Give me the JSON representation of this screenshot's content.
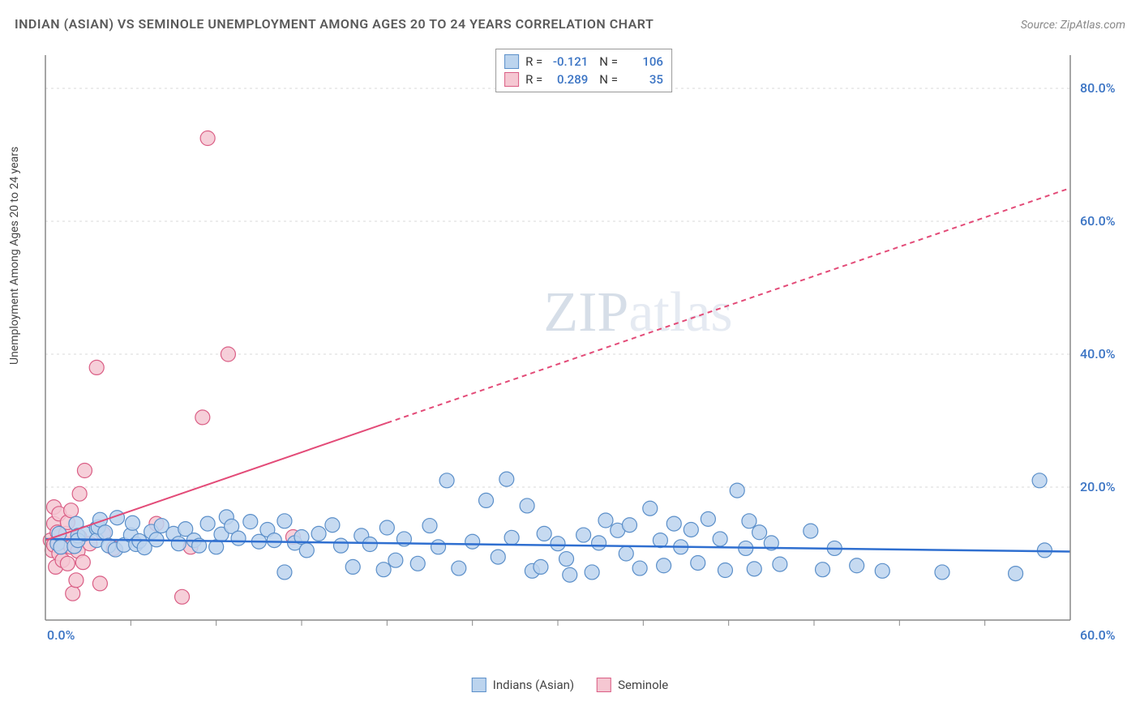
{
  "title": "INDIAN (ASIAN) VS SEMINOLE UNEMPLOYMENT AMONG AGES 20 TO 24 YEARS CORRELATION CHART",
  "source": "Source: ZipAtlas.com",
  "ylabel": "Unemployment Among Ages 20 to 24 years",
  "watermark": {
    "zip": "ZIP",
    "atlas": "atlas"
  },
  "chart": {
    "type": "scatter",
    "xlim": [
      0,
      60
    ],
    "ylim": [
      0,
      85
    ],
    "x_ticks": [
      0,
      60
    ],
    "x_tick_labels": [
      "0.0%",
      "60.0%"
    ],
    "x_minor_ticks": [
      5,
      10,
      15,
      20,
      25,
      30,
      35,
      40,
      45,
      50,
      55
    ],
    "y_ticks": [
      20,
      40,
      60,
      80
    ],
    "y_tick_labels": [
      "20.0%",
      "40.0%",
      "60.0%",
      "80.0%"
    ],
    "grid_color": "#d9d9d9",
    "axis_color": "#888888",
    "background_color": "#ffffff",
    "series": [
      {
        "name": "Indians (Asian)",
        "marker_fill": "#bcd4ee",
        "marker_stroke": "#5b8fc9",
        "marker_radius": 9,
        "line_color": "#2f6fd0",
        "line_width": 2.5,
        "line_dash": "none",
        "R": "-0.121",
        "N": "106",
        "trend": {
          "x1": 0,
          "y1": 12.2,
          "x2": 60,
          "y2": 10.3,
          "dash_start_x": 60
        },
        "points": [
          [
            0.7,
            11.5
          ],
          [
            0.8,
            13.0
          ],
          [
            0.9,
            11.0
          ],
          [
            1.7,
            11.1
          ],
          [
            1.8,
            14.5
          ],
          [
            1.9,
            12.7
          ],
          [
            1.9,
            12.0
          ],
          [
            2.3,
            13.0
          ],
          [
            3.0,
            13.8
          ],
          [
            3.0,
            12.0
          ],
          [
            3.1,
            14.0
          ],
          [
            3.2,
            15.1
          ],
          [
            3.5,
            13.2
          ],
          [
            3.7,
            11.2
          ],
          [
            4.1,
            10.6
          ],
          [
            4.2,
            15.4
          ],
          [
            4.6,
            11.3
          ],
          [
            5.0,
            12.8
          ],
          [
            5.1,
            14.6
          ],
          [
            5.3,
            11.4
          ],
          [
            5.5,
            11.9
          ],
          [
            5.8,
            10.9
          ],
          [
            6.2,
            13.3
          ],
          [
            6.5,
            12.1
          ],
          [
            6.8,
            14.2
          ],
          [
            7.5,
            13.0
          ],
          [
            7.8,
            11.5
          ],
          [
            8.2,
            13.7
          ],
          [
            8.7,
            12.0
          ],
          [
            9.0,
            11.2
          ],
          [
            9.5,
            14.5
          ],
          [
            10.0,
            11.0
          ],
          [
            10.3,
            12.9
          ],
          [
            10.6,
            15.5
          ],
          [
            10.9,
            14.1
          ],
          [
            11.3,
            12.3
          ],
          [
            12.0,
            14.8
          ],
          [
            12.5,
            11.8
          ],
          [
            13.0,
            13.6
          ],
          [
            13.4,
            12.0
          ],
          [
            14.0,
            14.9
          ],
          [
            14.0,
            7.2
          ],
          [
            14.6,
            11.6
          ],
          [
            15.0,
            12.5
          ],
          [
            15.3,
            10.5
          ],
          [
            16.0,
            13.0
          ],
          [
            16.8,
            14.3
          ],
          [
            17.3,
            11.2
          ],
          [
            18.0,
            8.0
          ],
          [
            18.5,
            12.7
          ],
          [
            19.0,
            11.4
          ],
          [
            19.8,
            7.6
          ],
          [
            20.0,
            13.9
          ],
          [
            20.5,
            9.0
          ],
          [
            21.0,
            12.2
          ],
          [
            21.8,
            8.5
          ],
          [
            22.5,
            14.2
          ],
          [
            23.0,
            11.0
          ],
          [
            23.5,
            21.0
          ],
          [
            24.2,
            7.8
          ],
          [
            25.0,
            11.8
          ],
          [
            25.8,
            18.0
          ],
          [
            26.5,
            9.5
          ],
          [
            27.0,
            21.2
          ],
          [
            27.3,
            12.4
          ],
          [
            28.2,
            17.2
          ],
          [
            28.5,
            7.4
          ],
          [
            29.0,
            8.0
          ],
          [
            29.2,
            13.0
          ],
          [
            30.0,
            11.5
          ],
          [
            30.5,
            9.2
          ],
          [
            30.7,
            6.8
          ],
          [
            31.5,
            12.8
          ],
          [
            32.0,
            7.2
          ],
          [
            32.4,
            11.6
          ],
          [
            32.8,
            15.0
          ],
          [
            33.5,
            13.5
          ],
          [
            34.0,
            10.0
          ],
          [
            34.2,
            14.3
          ],
          [
            34.8,
            7.8
          ],
          [
            35.4,
            16.8
          ],
          [
            36.0,
            12.0
          ],
          [
            36.2,
            8.2
          ],
          [
            36.8,
            14.5
          ],
          [
            37.2,
            11.0
          ],
          [
            37.8,
            13.6
          ],
          [
            38.2,
            8.6
          ],
          [
            38.8,
            15.2
          ],
          [
            39.5,
            12.2
          ],
          [
            39.8,
            7.5
          ],
          [
            40.5,
            19.5
          ],
          [
            41.0,
            10.8
          ],
          [
            41.2,
            14.9
          ],
          [
            41.5,
            7.7
          ],
          [
            41.8,
            13.2
          ],
          [
            42.5,
            11.6
          ],
          [
            43.0,
            8.4
          ],
          [
            44.8,
            13.4
          ],
          [
            45.5,
            7.6
          ],
          [
            46.2,
            10.8
          ],
          [
            47.5,
            8.2
          ],
          [
            49.0,
            7.4
          ],
          [
            52.5,
            7.2
          ],
          [
            56.8,
            7.0
          ],
          [
            58.2,
            21.0
          ],
          [
            58.5,
            10.5
          ]
        ]
      },
      {
        "name": "Seminole",
        "marker_fill": "#f5c7d2",
        "marker_stroke": "#da5e85",
        "marker_radius": 9,
        "line_color": "#e34b78",
        "line_width": 2,
        "line_dash": "6,5",
        "R": "0.289",
        "N": "35",
        "trend": {
          "x1": 0,
          "y1": 12.0,
          "x2": 60,
          "y2": 65.0,
          "dash_start_x": 20
        },
        "points": [
          [
            0.3,
            12.0
          ],
          [
            0.4,
            10.5
          ],
          [
            0.5,
            14.5
          ],
          [
            0.5,
            17.0
          ],
          [
            0.5,
            11.3
          ],
          [
            0.6,
            8.0
          ],
          [
            0.7,
            13.2
          ],
          [
            0.8,
            10.0
          ],
          [
            0.8,
            16.0
          ],
          [
            1.0,
            11.8
          ],
          [
            1.0,
            9.0
          ],
          [
            1.2,
            13.0
          ],
          [
            1.3,
            14.7
          ],
          [
            1.3,
            8.5
          ],
          [
            1.5,
            11.0
          ],
          [
            1.5,
            16.5
          ],
          [
            1.6,
            4.0
          ],
          [
            1.8,
            6.0
          ],
          [
            1.9,
            10.4
          ],
          [
            2.0,
            12.5
          ],
          [
            2.0,
            19.0
          ],
          [
            2.2,
            8.7
          ],
          [
            2.3,
            22.5
          ],
          [
            2.6,
            11.5
          ],
          [
            3.0,
            38.0
          ],
          [
            3.2,
            5.5
          ],
          [
            3.4,
            13.0
          ],
          [
            4.0,
            10.8
          ],
          [
            6.5,
            14.5
          ],
          [
            8.0,
            3.5
          ],
          [
            8.5,
            11.0
          ],
          [
            9.2,
            30.5
          ],
          [
            9.5,
            72.5
          ],
          [
            10.7,
            40.0
          ],
          [
            14.5,
            12.5
          ]
        ]
      }
    ]
  },
  "legend_bottom": [
    {
      "label": "Indians (Asian)",
      "fill": "#bcd4ee",
      "stroke": "#5b8fc9"
    },
    {
      "label": "Seminole",
      "fill": "#f5c7d2",
      "stroke": "#da5e85"
    }
  ]
}
